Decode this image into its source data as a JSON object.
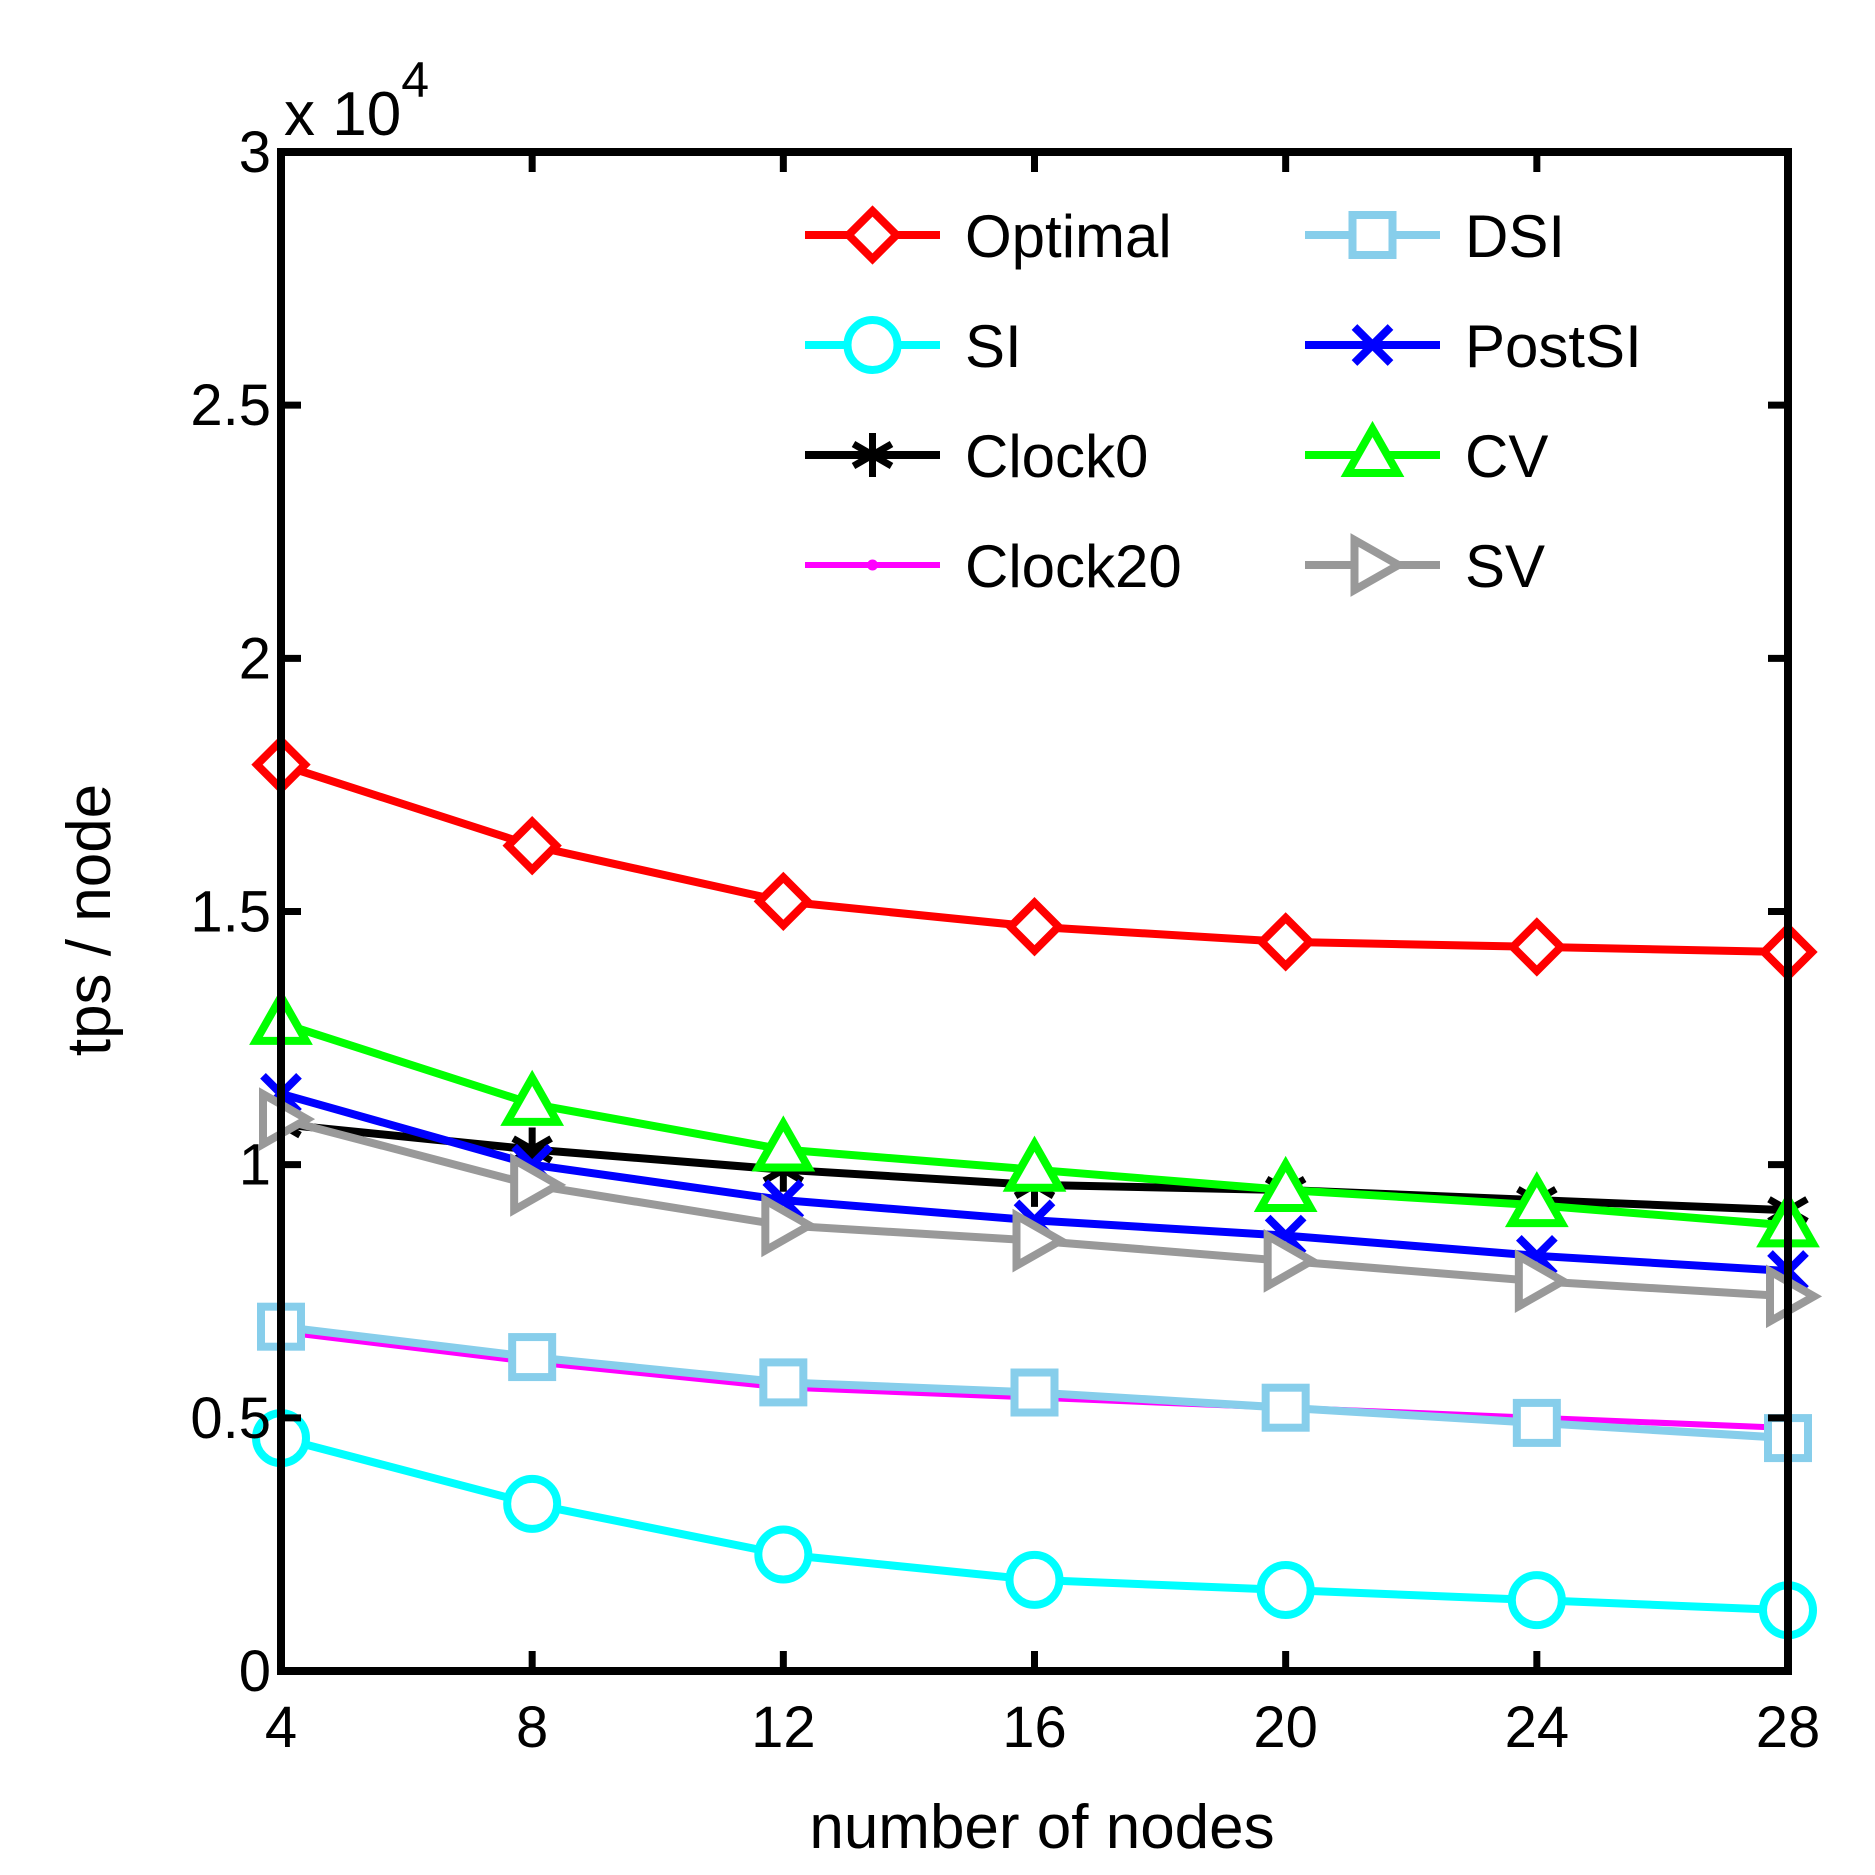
{
  "chart_data": {
    "type": "line",
    "title": "",
    "xlabel": "number of nodes",
    "ylabel": "tps / node",
    "y_multiplier_label": {
      "base": "x 10",
      "exponent": "4"
    },
    "x": [
      4,
      8,
      12,
      16,
      20,
      24,
      28
    ],
    "xlim": [
      4,
      28
    ],
    "ylim": [
      0,
      3
    ],
    "x_ticks": [
      "4",
      "8",
      "12",
      "16",
      "20",
      "24",
      "28"
    ],
    "y_ticks": [
      {
        "value": 0,
        "label": "0"
      },
      {
        "value": 0.5,
        "label": "0.5"
      },
      {
        "value": 1,
        "label": "1"
      },
      {
        "value": 1.5,
        "label": "1.5"
      },
      {
        "value": 2,
        "label": "2"
      },
      {
        "value": 2.5,
        "label": "2.5"
      },
      {
        "value": 3,
        "label": "3"
      }
    ],
    "grid": false,
    "legend_position": "top-right",
    "series": [
      {
        "name": "Optimal",
        "color": "#ff0000",
        "marker": "diamond",
        "values": [
          1.79,
          1.63,
          1.52,
          1.47,
          1.44,
          1.43,
          1.42
        ]
      },
      {
        "name": "SI",
        "color": "#00ffff",
        "marker": "circle",
        "values": [
          0.46,
          0.33,
          0.23,
          0.18,
          0.16,
          0.14,
          0.12
        ]
      },
      {
        "name": "Clock0",
        "color": "#000000",
        "marker": "asterisk",
        "values": [
          1.08,
          1.03,
          0.99,
          0.96,
          0.95,
          0.93,
          0.91
        ]
      },
      {
        "name": "Clock20",
        "color": "#ff00ff",
        "marker": "dot",
        "values": [
          0.67,
          0.61,
          0.56,
          0.54,
          0.52,
          0.5,
          0.48
        ]
      },
      {
        "name": "DSI",
        "color": "#87ceeb",
        "marker": "square",
        "values": [
          0.68,
          0.62,
          0.57,
          0.55,
          0.52,
          0.49,
          0.46
        ]
      },
      {
        "name": "PostSI",
        "color": "#0000ff",
        "marker": "x",
        "values": [
          1.14,
          1.0,
          0.93,
          0.89,
          0.86,
          0.82,
          0.79
        ]
      },
      {
        "name": "CV",
        "color": "#00ff00",
        "marker": "triangle-up",
        "values": [
          1.28,
          1.12,
          1.03,
          0.99,
          0.95,
          0.92,
          0.88
        ]
      },
      {
        "name": "SV",
        "color": "#999999",
        "marker": "triangle-right",
        "values": [
          1.09,
          0.96,
          0.88,
          0.85,
          0.81,
          0.77,
          0.74
        ]
      }
    ]
  }
}
